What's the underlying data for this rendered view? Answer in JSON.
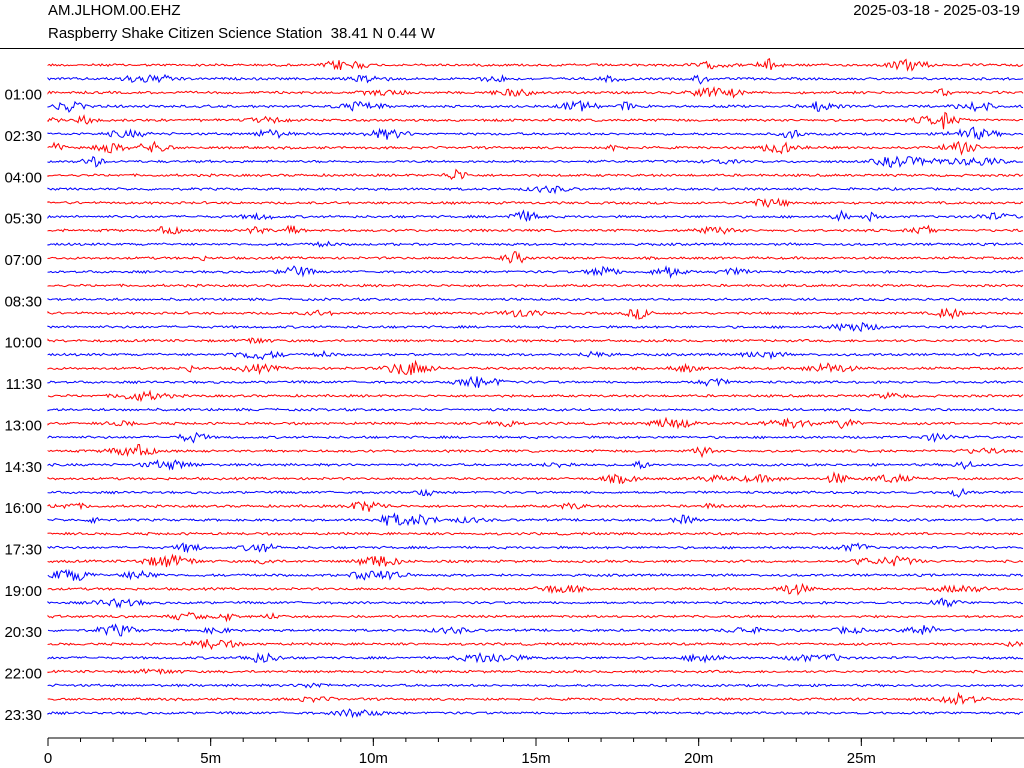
{
  "header": {
    "channel": "AM.JLHOM.00.EHZ",
    "date_range": "2025-03-18 - 2025-03-19",
    "station": "Raspberry Shake Citizen Science Station  38.41 N 0.44 W"
  },
  "chart_data": {
    "type": "helicorder",
    "colors": [
      "#ff0000",
      "#0000ff"
    ],
    "xlim": [
      0,
      30
    ],
    "xticks": [
      0,
      {
        "value": 5,
        "label": "5m"
      },
      {
        "value": 10,
        "label": "10m"
      },
      {
        "value": 15,
        "label": "15m"
      },
      {
        "value": 20,
        "label": "20m"
      },
      {
        "value": 25,
        "label": "25m"
      }
    ],
    "ylim": [
      0,
      23.5
    ],
    "yticks": [
      {
        "value": 1,
        "label": "01:00"
      },
      {
        "value": 2.5,
        "label": "02:30"
      },
      {
        "value": 4,
        "label": "04:00"
      },
      {
        "value": 5.5,
        "label": "05:30"
      },
      {
        "value": 7,
        "label": "07:00"
      },
      {
        "value": 8.5,
        "label": "08:30"
      },
      {
        "value": 10,
        "label": "10:00"
      },
      {
        "value": 11.5,
        "label": "11:30"
      },
      {
        "value": 13,
        "label": "13:00"
      },
      {
        "value": 14.5,
        "label": "14:30"
      },
      {
        "value": 16,
        "label": "16:00"
      },
      {
        "value": 17.5,
        "label": "17:30"
      },
      {
        "value": 19,
        "label": "19:00"
      },
      {
        "value": 20.5,
        "label": "20:30"
      },
      {
        "value": 22,
        "label": "22:00"
      },
      {
        "value": 23.5,
        "label": "23:30"
      }
    ]
  }
}
